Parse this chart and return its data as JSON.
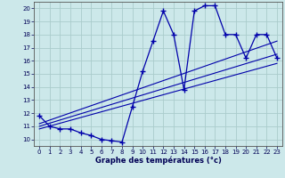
{
  "title": "Graphe des températures (°c)",
  "bg_color": "#cce8ea",
  "grid_color": "#aacccc",
  "line_color": "#0000aa",
  "xlim": [
    -0.5,
    23.5
  ],
  "ylim": [
    9.5,
    20.5
  ],
  "xticks": [
    0,
    1,
    2,
    3,
    4,
    5,
    6,
    7,
    8,
    9,
    10,
    11,
    12,
    13,
    14,
    15,
    16,
    17,
    18,
    19,
    20,
    21,
    22,
    23
  ],
  "yticks": [
    10,
    11,
    12,
    13,
    14,
    15,
    16,
    17,
    18,
    19,
    20
  ],
  "curve_x": [
    0,
    1,
    2,
    3,
    4,
    5,
    6,
    7,
    8,
    9,
    10,
    11,
    12,
    13,
    14,
    15,
    16,
    17,
    18,
    19,
    20,
    21,
    22,
    23
  ],
  "curve_y": [
    11.8,
    11.0,
    10.8,
    10.8,
    10.5,
    10.3,
    10.0,
    9.9,
    9.8,
    12.5,
    15.2,
    17.5,
    19.8,
    18.0,
    13.8,
    19.8,
    20.2,
    20.2,
    18.0,
    18.0,
    16.2,
    18.0,
    18.0,
    16.2
  ],
  "line1_x": [
    0,
    23
  ],
  "line1_y": [
    11.2,
    17.5
  ],
  "line2_x": [
    0,
    23
  ],
  "line2_y": [
    11.0,
    16.5
  ],
  "line3_x": [
    0,
    23
  ],
  "line3_y": [
    10.8,
    15.8
  ]
}
